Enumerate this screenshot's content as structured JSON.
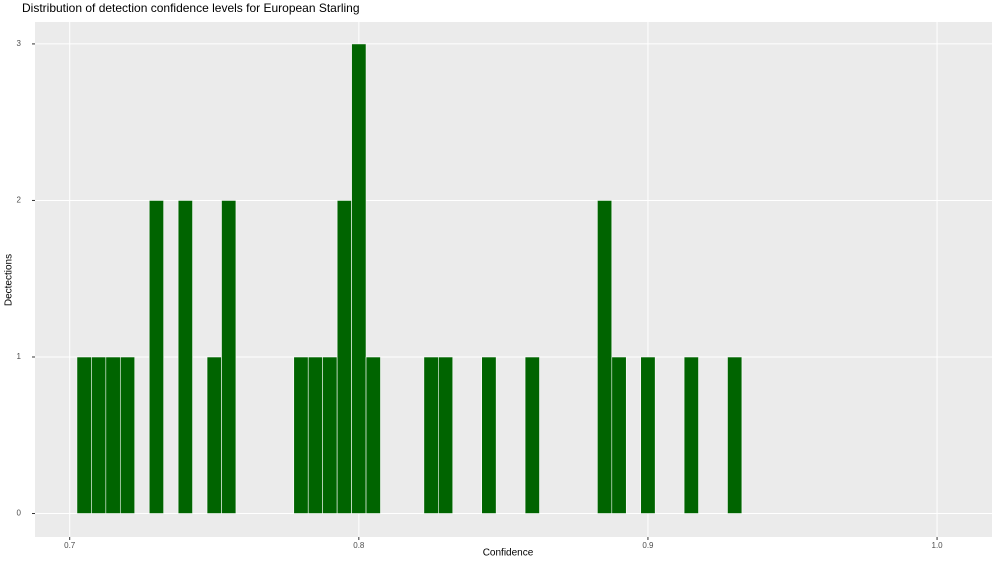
{
  "chart_data": {
    "type": "histogram",
    "title": "Distribution of detection confidence levels for European Starling",
    "x_label": "Confidence",
    "y_label": "Dectections",
    "bins": [
      0.7025,
      0.7075,
      0.7125,
      0.7175,
      0.7225,
      0.7275,
      0.7325,
      0.7375,
      0.7425,
      0.7475,
      0.7525,
      0.7575,
      0.7625,
      0.7675,
      0.7725,
      0.7775,
      0.7825,
      0.7875,
      0.7925,
      0.7975,
      0.8025,
      0.8075,
      0.8125,
      0.8175,
      0.8225,
      0.8275,
      0.8325,
      0.8375,
      0.8425,
      0.8475,
      0.8525,
      0.8575,
      0.8625,
      0.8675,
      0.8725,
      0.8775,
      0.8825,
      0.8875,
      0.8925,
      0.8975,
      0.9025,
      0.9075,
      0.9125,
      0.9175,
      0.9225,
      0.9275,
      0.9325
    ],
    "values": [
      1,
      1,
      1,
      1,
      0,
      2,
      0,
      2,
      0,
      1,
      2,
      0,
      0,
      0,
      0,
      1,
      1,
      1,
      2,
      3,
      1,
      0,
      0,
      0,
      1,
      1,
      0,
      0,
      1,
      0,
      0,
      1,
      0,
      0,
      0,
      0,
      2,
      1,
      0,
      1,
      0,
      0,
      1,
      0,
      0,
      1
    ],
    "color": "#006400",
    "xlim": [
      0.688,
      1.019
    ],
    "ylim": [
      -0.15,
      3.14
    ],
    "xticks": [
      0.7,
      0.8,
      0.9,
      {
        "value": 1,
        "label": "1.0"
      }
    ],
    "yticks": [
      0,
      1,
      2,
      3
    ],
    "grid": true
  }
}
